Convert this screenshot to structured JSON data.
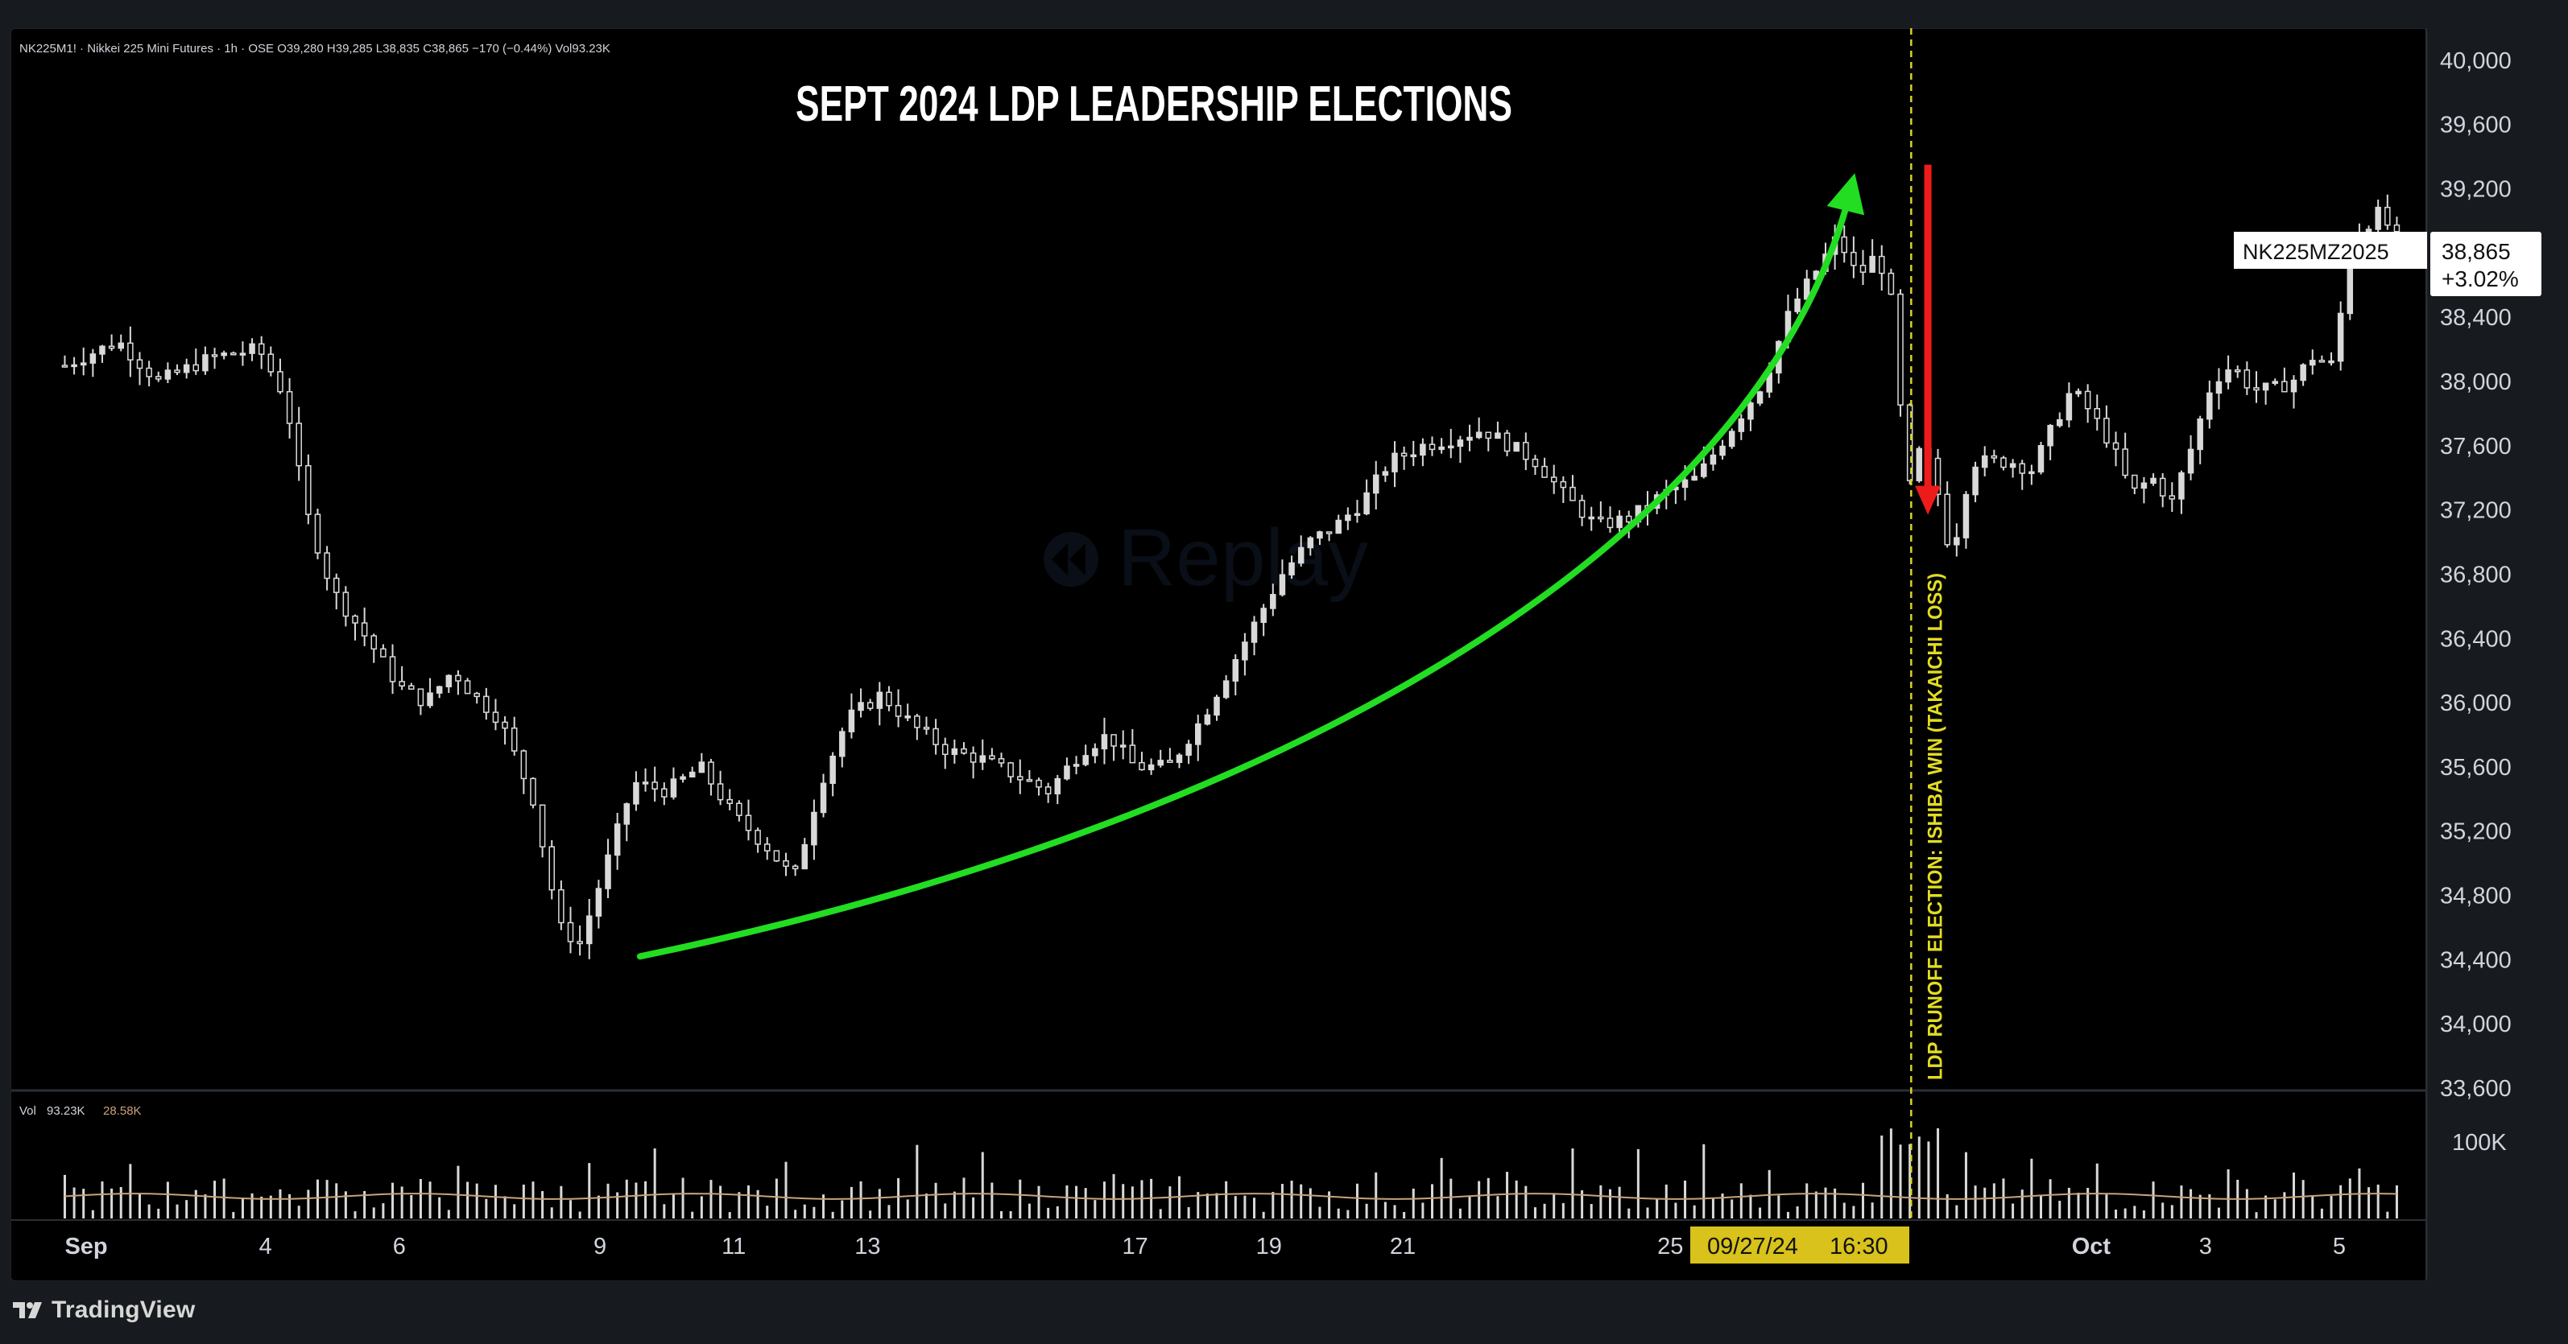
{
  "legend": {
    "symbol": "NK225M1!",
    "name": "Nikkei 225 Mini Futures",
    "interval": "1h",
    "exchange": "OSE",
    "open": "O39,280",
    "high": "H39,285",
    "low": "L38,835",
    "close": "C38,865",
    "change": "−170 (−0.44%)",
    "volume": "Vol93.23K",
    "vol_label": "Vol",
    "vol_value": "93.23K",
    "vol_ma": "28.58K"
  },
  "annotations": {
    "headline": "SEPT 2024 LDP LEADERSHIP ELECTIONS",
    "event_label": "LDP RUNOFF ELECTION: ISHIBA WIN (TAKAICHI LOSS)",
    "watermark": "Replay"
  },
  "price_tag": {
    "symbol": "NK225MZ2025",
    "price": "38,865",
    "change_pct": "+3.02%"
  },
  "crosshair": {
    "date": "09/27/24",
    "time": "16:30"
  },
  "volume_axis_label": "100K",
  "footer": {
    "brand": "TradingView"
  },
  "colors": {
    "background": "#000000",
    "candles": "#d9d9d9",
    "uptrend_arrow": "#22dd22",
    "drop_arrow": "#ee1b1b",
    "event_line": "#d9d22b",
    "crosshair_label_bg": "#d8c21b",
    "volume_ma": "#c9a27a"
  },
  "chart_data": {
    "type": "candlestick",
    "title": "SEPT 2024 LDP LEADERSHIP ELECTIONS",
    "series_name": "NK225M1! Nikkei 225 Mini Futures, 1h",
    "ylim": [
      33600,
      40200
    ],
    "y_ticks": [
      "33,600",
      "34,000",
      "34,400",
      "34,800",
      "35,200",
      "35,600",
      "36,000",
      "36,400",
      "36,800",
      "37,200",
      "37,600",
      "38,000",
      "38,400",
      "38,800",
      "39,200",
      "39,600",
      "40,000"
    ],
    "x_ticks": [
      {
        "label": "Sep",
        "t": 0
      },
      {
        "label": "4",
        "t": 3
      },
      {
        "label": "6",
        "t": 5
      },
      {
        "label": "9",
        "t": 8
      },
      {
        "label": "11",
        "t": 10
      },
      {
        "label": "13",
        "t": 12
      },
      {
        "label": "17",
        "t": 16
      },
      {
        "label": "19",
        "t": 18
      },
      {
        "label": "21",
        "t": 20
      },
      {
        "label": "25",
        "t": 24
      },
      {
        "label": "Oct",
        "t": 30
      },
      {
        "label": "3",
        "t": 32
      },
      {
        "label": "5",
        "t": 34
      }
    ],
    "x_domain": [
      -0.8,
      35.3
    ],
    "event_t": 27.6,
    "price_keypoints": [
      [
        0,
        38100
      ],
      [
        0.8,
        38250
      ],
      [
        1.4,
        38000
      ],
      [
        2.2,
        38150
      ],
      [
        2.9,
        38200
      ],
      [
        3.3,
        37900
      ],
      [
        3.6,
        37200
      ],
      [
        4.0,
        36700
      ],
      [
        4.6,
        36350
      ],
      [
        5.0,
        36100
      ],
      [
        5.4,
        36000
      ],
      [
        5.8,
        36200
      ],
      [
        6.1,
        36050
      ],
      [
        6.5,
        35900
      ],
      [
        7.0,
        35400
      ],
      [
        7.4,
        34600
      ],
      [
        7.7,
        34500
      ],
      [
        8.1,
        35000
      ],
      [
        8.5,
        35500
      ],
      [
        9.0,
        35450
      ],
      [
        9.5,
        35600
      ],
      [
        10.0,
        35300
      ],
      [
        10.5,
        35100
      ],
      [
        10.9,
        34900
      ],
      [
        11.3,
        35500
      ],
      [
        11.7,
        35900
      ],
      [
        12.2,
        36050
      ],
      [
        12.7,
        35850
      ],
      [
        13.2,
        35700
      ],
      [
        13.7,
        35650
      ],
      [
        14.2,
        35550
      ],
      [
        14.7,
        35450
      ],
      [
        15.2,
        35700
      ],
      [
        15.6,
        35800
      ],
      [
        16.0,
        35600
      ],
      [
        16.5,
        35600
      ],
      [
        17.0,
        35900
      ],
      [
        17.4,
        36200
      ],
      [
        17.8,
        36500
      ],
      [
        18.2,
        36800
      ],
      [
        18.6,
        37000
      ],
      [
        19.0,
        37100
      ],
      [
        19.4,
        37250
      ],
      [
        19.8,
        37500
      ],
      [
        20.3,
        37600
      ],
      [
        20.8,
        37650
      ],
      [
        21.2,
        37700
      ],
      [
        21.6,
        37600
      ],
      [
        22.0,
        37500
      ],
      [
        22.4,
        37300
      ],
      [
        22.9,
        37100
      ],
      [
        23.4,
        37150
      ],
      [
        23.9,
        37300
      ],
      [
        24.4,
        37400
      ],
      [
        24.9,
        37700
      ],
      [
        25.4,
        38000
      ],
      [
        25.8,
        38450
      ],
      [
        26.2,
        38700
      ],
      [
        26.5,
        38900
      ],
      [
        26.8,
        38650
      ],
      [
        27.1,
        38800
      ],
      [
        27.3,
        38500
      ],
      [
        27.55,
        37300
      ],
      [
        27.75,
        37600
      ],
      [
        27.95,
        37400
      ],
      [
        28.2,
        36900
      ],
      [
        28.5,
        37500
      ],
      [
        28.8,
        37500
      ],
      [
        29.1,
        37500
      ],
      [
        29.4,
        37450
      ],
      [
        29.7,
        37700
      ],
      [
        30.0,
        37950
      ],
      [
        30.3,
        37800
      ],
      [
        30.6,
        37600
      ],
      [
        30.9,
        37300
      ],
      [
        31.2,
        37400
      ],
      [
        31.5,
        37250
      ],
      [
        31.8,
        37600
      ],
      [
        32.1,
        38000
      ],
      [
        32.4,
        38100
      ],
      [
        32.7,
        37950
      ],
      [
        33.0,
        37950
      ],
      [
        33.3,
        38000
      ],
      [
        33.6,
        38150
      ],
      [
        33.9,
        38100
      ],
      [
        34.2,
        38900
      ],
      [
        34.6,
        39050
      ],
      [
        34.9,
        38865
      ]
    ],
    "uptrend_arrow": {
      "from": [
        8.6,
        34420
      ],
      "to": [
        26.7,
        39200
      ]
    },
    "drop_arrow": {
      "from_price": 39350,
      "to_price": 37200,
      "t": 27.85
    },
    "volume": {
      "y_ticks": [
        "100K"
      ],
      "ylim": [
        0,
        160000
      ],
      "ma_level": 28580
    }
  }
}
